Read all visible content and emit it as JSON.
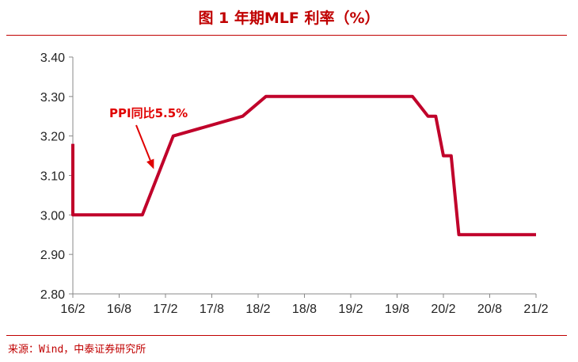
{
  "header": {
    "title": "图 1 年期MLF 利率（%）"
  },
  "footer": {
    "source": "来源：Wind，中泰证券研究所"
  },
  "chart_data": {
    "type": "line",
    "title": "图 1 年期MLF 利率（%）",
    "xlabel": "",
    "ylabel": "",
    "ylim": [
      2.8,
      3.4
    ],
    "yticks": [
      "3.40",
      "3.30",
      "3.20",
      "3.10",
      "3.00",
      "2.90",
      "2.80"
    ],
    "xticks": [
      "16/2",
      "16/8",
      "17/2",
      "17/8",
      "18/2",
      "18/8",
      "19/2",
      "19/8",
      "20/2",
      "20/8",
      "21/2"
    ],
    "grid": false,
    "line_color": "#c0002a",
    "series": [
      {
        "x": [
          "2016-02",
          "2016-02",
          "2016-11",
          "2017-01",
          "2017-01",
          "2017-03",
          "2017-12",
          "2018-03",
          "2019-10",
          "2019-12",
          "2020-01",
          "2020-02",
          "2020-03",
          "2020-04",
          "2021-02"
        ],
        "values": [
          3.18,
          3.0,
          3.0,
          3.1,
          3.1,
          3.2,
          3.25,
          3.3,
          3.3,
          3.25,
          3.25,
          3.15,
          3.15,
          2.95,
          2.95
        ]
      }
    ],
    "annotations": [
      {
        "text": "PPI同比5.5%",
        "target_x": "2017-01",
        "target_y": 3.1,
        "color": "#e00000"
      }
    ]
  }
}
